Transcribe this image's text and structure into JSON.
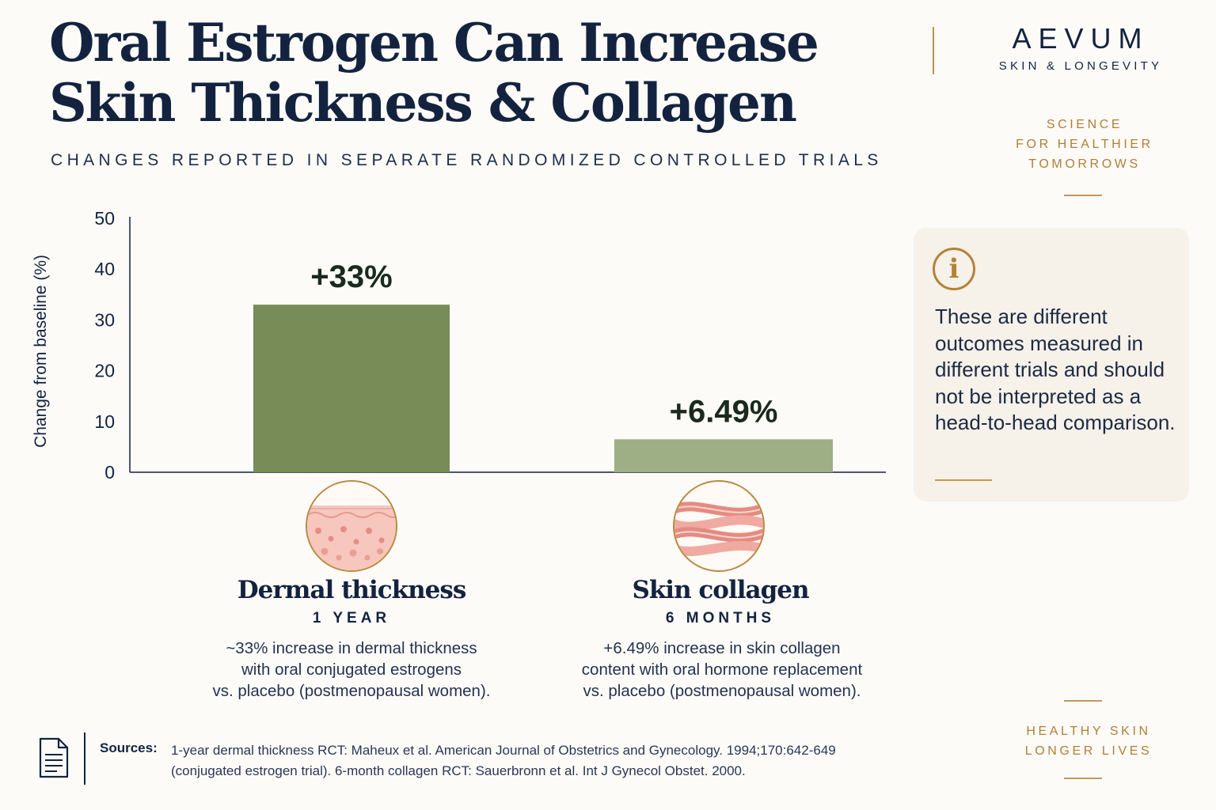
{
  "header": {
    "title_lines": [
      "Oral Estrogen Can Increase",
      "Skin Thickness & Collagen"
    ],
    "subtitle": "CHANGES REPORTED IN SEPARATE RANDOMIZED CONTROLLED TRIALS"
  },
  "brand": {
    "name": "AEVUM",
    "sub": "SKIN & LONGEVITY",
    "tagline": [
      "SCIENCE",
      "FOR HEALTHIER",
      "TOMORROWS"
    ],
    "footer_tagline": [
      "HEALTHY SKIN",
      "LONGER LIVES"
    ]
  },
  "info_card": {
    "icon": "info-icon",
    "text": "These are different outcomes measured in different trials and should not be interpreted as a head-to-head comparison."
  },
  "chart_data": {
    "type": "bar",
    "ylabel": "Change from baseline (%)",
    "ylim": [
      0,
      50
    ],
    "yticks": [
      0,
      10,
      20,
      30,
      40,
      50
    ],
    "categories": [
      "Dermal thickness",
      "Skin collagen"
    ],
    "values": [
      33,
      6.49
    ],
    "data_labels": [
      "+33%",
      "+6.49%"
    ],
    "bar_colors": [
      "#788c57",
      "#9eae85"
    ],
    "grid": false
  },
  "categories_detail": [
    {
      "icon": "dermis-layers-icon",
      "title": "Dermal thickness",
      "duration": "1 YEAR",
      "desc": [
        "~33% increase in dermal thickness",
        "with oral conjugated estrogens",
        "vs. placebo (postmenopausal women)."
      ]
    },
    {
      "icon": "collagen-fibers-icon",
      "title": "Skin collagen",
      "duration": "6 MONTHS",
      "desc": [
        "+6.49% increase in skin collagen",
        "content with oral hormone replacement",
        "vs. placebo (postmenopausal women)."
      ]
    }
  ],
  "sources": {
    "icon": "document-icon",
    "label": "Sources:",
    "lines": [
      "1-year dermal thickness RCT: Maheux et al. American Journal of Obstetrics and Gynecology. 1994;170:642-649",
      "(conjugated estrogen trial). 6-month collagen RCT: Sauerbronn et al. Int J Gynecol Obstet. 2000."
    ]
  },
  "colors": {
    "navy": "#13233f",
    "gold": "#b07f36",
    "bar_dark": "#788c57",
    "bar_light": "#9eae85"
  }
}
